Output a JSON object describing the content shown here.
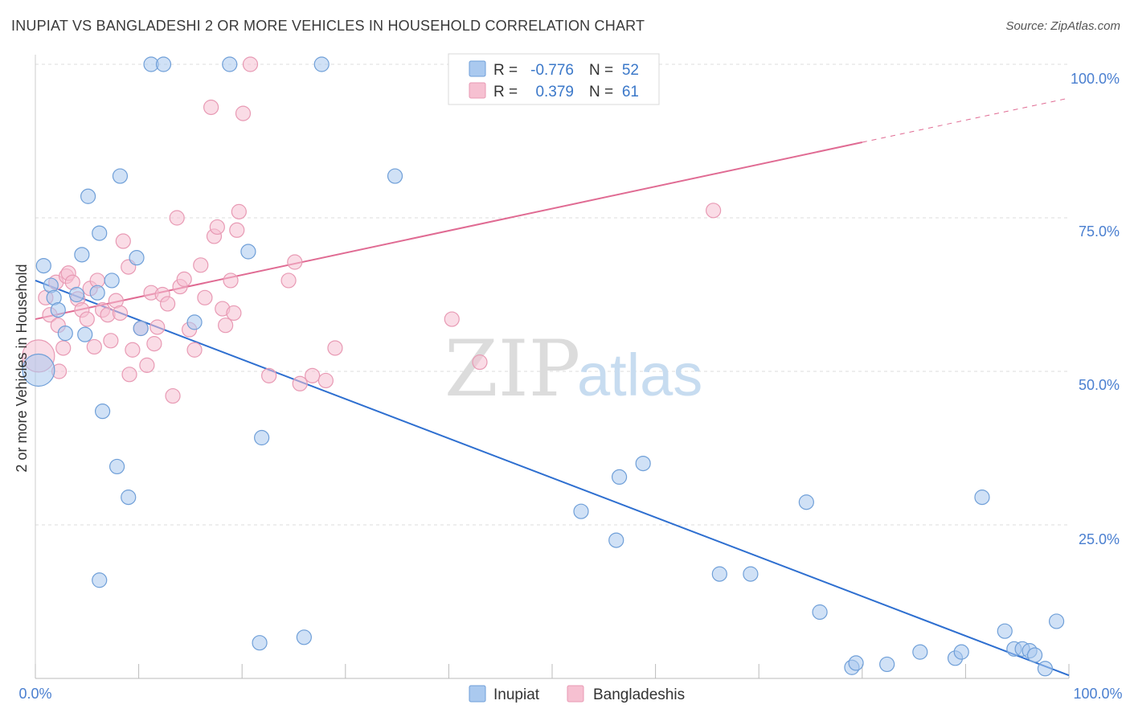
{
  "header": {
    "title": "INUPIAT VS BANGLADESHI 2 OR MORE VEHICLES IN HOUSEHOLD CORRELATION CHART",
    "source": "Source: ZipAtlas.com"
  },
  "watermark": {
    "zip": "ZIP",
    "atlas": "atlas"
  },
  "colors": {
    "inupiat_fill": "#aac9ef",
    "inupiat_stroke": "#6f9fd8",
    "inupiat_line": "#2e6fd0",
    "bangla_fill": "#f6c0d1",
    "bangla_stroke": "#e89ab4",
    "bangla_line": "#e06b93",
    "grid": "#dddddd",
    "tick_text": "#4a7fd0"
  },
  "legend": {
    "rows": [
      {
        "r_label": "R =",
        "r_value": "-0.776",
        "n_label": "N =",
        "n_value": "52"
      },
      {
        "r_label": "R =",
        "r_value": "0.379",
        "n_label": "N =",
        "n_value": "61"
      }
    ]
  },
  "bottom_legend": {
    "inupiat": "Inupiat",
    "bangla": "Bangladeshis"
  },
  "chart_data": {
    "type": "scatter",
    "title": "INUPIAT VS BANGLADESHI 2 OR MORE VEHICLES IN HOUSEHOLD CORRELATION CHART",
    "xlabel": "",
    "ylabel": "2 or more Vehicles in Household",
    "xlim": [
      0,
      100
    ],
    "ylim": [
      0,
      100
    ],
    "x_tick_labels": [
      "0.0%",
      "100.0%"
    ],
    "y_ticks": [
      25,
      50,
      75,
      100
    ],
    "y_tick_labels": [
      "25.0%",
      "50.0%",
      "75.0%",
      "100.0%"
    ],
    "series": [
      {
        "name": "Inupiat",
        "r": -0.776,
        "n": 52,
        "trend": {
          "x0": 0,
          "y0": 64.8,
          "x1": 100,
          "y1": 0.5
        },
        "points": [
          [
            0.8,
            67.2
          ],
          [
            1.5,
            64.0
          ],
          [
            1.8,
            62.0
          ],
          [
            2.2,
            60.0
          ],
          [
            2.9,
            56.2
          ],
          [
            4.0,
            62.5
          ],
          [
            4.5,
            69.0
          ],
          [
            5.1,
            78.5
          ],
          [
            4.8,
            56.0
          ],
          [
            6.2,
            72.5
          ],
          [
            6.0,
            62.8
          ],
          [
            7.4,
            64.8
          ],
          [
            8.2,
            81.8
          ],
          [
            9.8,
            68.5
          ],
          [
            10.2,
            57.0
          ],
          [
            11.2,
            100
          ],
          [
            12.4,
            100
          ],
          [
            18.8,
            100
          ],
          [
            27.7,
            100
          ],
          [
            34.8,
            81.8
          ],
          [
            20.6,
            69.5
          ],
          [
            15.4,
            58.0
          ],
          [
            0.3,
            50.2
          ],
          [
            6.5,
            43.5
          ],
          [
            21.9,
            39.2
          ],
          [
            7.9,
            34.5
          ],
          [
            9.0,
            29.5
          ],
          [
            6.2,
            16.0
          ],
          [
            21.7,
            5.8
          ],
          [
            26.0,
            6.7
          ],
          [
            52.8,
            27.2
          ],
          [
            56.2,
            22.5
          ],
          [
            56.5,
            32.8
          ],
          [
            58.8,
            35.0
          ],
          [
            66.2,
            17.0
          ],
          [
            69.2,
            17.0
          ],
          [
            74.6,
            28.7
          ],
          [
            75.9,
            10.8
          ],
          [
            79.0,
            1.8
          ],
          [
            79.4,
            2.5
          ],
          [
            82.4,
            2.3
          ],
          [
            85.6,
            4.3
          ],
          [
            89.0,
            3.3
          ],
          [
            89.6,
            4.3
          ],
          [
            91.6,
            29.5
          ],
          [
            93.8,
            7.7
          ],
          [
            94.7,
            4.8
          ],
          [
            95.5,
            4.8
          ],
          [
            96.2,
            4.5
          ],
          [
            96.7,
            3.8
          ],
          [
            97.7,
            1.6
          ],
          [
            98.8,
            9.3
          ]
        ]
      },
      {
        "name": "Bangladeshis",
        "r": 0.379,
        "n": 61,
        "trend": {
          "x0": 0,
          "y0": 58.5,
          "x1": 100,
          "y1": 94.5,
          "solid_until_x": 80
        },
        "points": [
          [
            0.3,
            52.5
          ],
          [
            1.4,
            59.2
          ],
          [
            1.0,
            62.0
          ],
          [
            2.0,
            64.5
          ],
          [
            2.2,
            57.5
          ],
          [
            2.3,
            50.0
          ],
          [
            2.7,
            53.8
          ],
          [
            3.0,
            65.5
          ],
          [
            3.2,
            66.0
          ],
          [
            3.6,
            64.5
          ],
          [
            4.1,
            61.8
          ],
          [
            4.5,
            60.0
          ],
          [
            5.0,
            58.5
          ],
          [
            5.3,
            63.5
          ],
          [
            5.7,
            54.0
          ],
          [
            6.0,
            64.8
          ],
          [
            6.5,
            60.0
          ],
          [
            7.0,
            59.2
          ],
          [
            7.3,
            55.0
          ],
          [
            7.8,
            61.5
          ],
          [
            8.2,
            59.5
          ],
          [
            8.5,
            71.2
          ],
          [
            9.0,
            67.0
          ],
          [
            9.1,
            49.5
          ],
          [
            9.4,
            53.5
          ],
          [
            10.2,
            57.0
          ],
          [
            10.8,
            51.0
          ],
          [
            11.2,
            62.8
          ],
          [
            11.5,
            54.5
          ],
          [
            11.8,
            57.2
          ],
          [
            12.3,
            62.5
          ],
          [
            12.8,
            61.0
          ],
          [
            13.3,
            46.0
          ],
          [
            13.7,
            75.0
          ],
          [
            14.0,
            63.8
          ],
          [
            14.4,
            65.0
          ],
          [
            14.9,
            56.8
          ],
          [
            15.4,
            53.5
          ],
          [
            16.0,
            67.3
          ],
          [
            16.4,
            62.0
          ],
          [
            17.0,
            93.0
          ],
          [
            17.3,
            72.0
          ],
          [
            17.6,
            73.5
          ],
          [
            18.1,
            60.2
          ],
          [
            18.4,
            57.5
          ],
          [
            18.9,
            64.8
          ],
          [
            19.2,
            59.5
          ],
          [
            19.5,
            73.0
          ],
          [
            19.7,
            76.0
          ],
          [
            20.1,
            92.0
          ],
          [
            20.8,
            100
          ],
          [
            22.6,
            49.3
          ],
          [
            24.5,
            64.8
          ],
          [
            25.1,
            67.8
          ],
          [
            25.6,
            48.0
          ],
          [
            26.8,
            49.3
          ],
          [
            28.1,
            48.5
          ],
          [
            29.0,
            53.8
          ],
          [
            40.3,
            58.5
          ],
          [
            43.0,
            51.5
          ],
          [
            65.6,
            76.2
          ]
        ]
      }
    ]
  }
}
